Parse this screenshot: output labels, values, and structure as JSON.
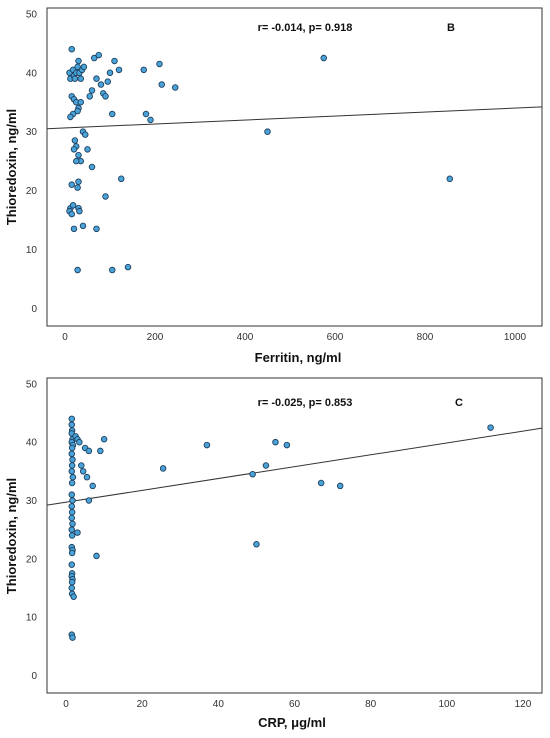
{
  "colors": {
    "point_fill": "#4aa3d8",
    "point_stroke": "#1d3f5e",
    "fit_line": "#333333",
    "frame": "#333333"
  },
  "chart_data": [
    {
      "type": "scatter",
      "panel_letter": "B",
      "annotation": "r= -0.014, p= 0.918",
      "xlabel": "Ferritin, ng/ml",
      "ylabel": "Thioredoxin, ng/ml",
      "xlim": [
        -40,
        1060
      ],
      "ylim": [
        -3,
        51
      ],
      "xticks": [
        0,
        200,
        400,
        600,
        800,
        1000
      ],
      "yticks": [
        0,
        10,
        20,
        30,
        40,
        50
      ],
      "grid": false,
      "fit_line": {
        "x": [
          -40,
          1060
        ],
        "y": [
          30.5,
          34.2
        ]
      },
      "points": [
        {
          "x": 15,
          "y": 44
        },
        {
          "x": 10,
          "y": 40
        },
        {
          "x": 12,
          "y": 39
        },
        {
          "x": 18,
          "y": 40.5
        },
        {
          "x": 20,
          "y": 39.5
        },
        {
          "x": 25,
          "y": 40
        },
        {
          "x": 28,
          "y": 41
        },
        {
          "x": 30,
          "y": 42
        },
        {
          "x": 32,
          "y": 40
        },
        {
          "x": 35,
          "y": 39
        },
        {
          "x": 38,
          "y": 40.5
        },
        {
          "x": 42,
          "y": 41
        },
        {
          "x": 22,
          "y": 39
        },
        {
          "x": 15,
          "y": 36
        },
        {
          "x": 20,
          "y": 35.5
        },
        {
          "x": 25,
          "y": 35
        },
        {
          "x": 30,
          "y": 34
        },
        {
          "x": 35,
          "y": 35
        },
        {
          "x": 28,
          "y": 33.5
        },
        {
          "x": 18,
          "y": 33
        },
        {
          "x": 12,
          "y": 32.5
        },
        {
          "x": 40,
          "y": 30
        },
        {
          "x": 45,
          "y": 29.5
        },
        {
          "x": 22,
          "y": 28.5
        },
        {
          "x": 25,
          "y": 27.5
        },
        {
          "x": 20,
          "y": 27
        },
        {
          "x": 30,
          "y": 26
        },
        {
          "x": 35,
          "y": 25
        },
        {
          "x": 25,
          "y": 25
        },
        {
          "x": 50,
          "y": 27
        },
        {
          "x": 60,
          "y": 24
        },
        {
          "x": 15,
          "y": 21
        },
        {
          "x": 30,
          "y": 21.5
        },
        {
          "x": 28,
          "y": 20.5
        },
        {
          "x": 12,
          "y": 17
        },
        {
          "x": 10,
          "y": 16.5
        },
        {
          "x": 15,
          "y": 16
        },
        {
          "x": 18,
          "y": 17.5
        },
        {
          "x": 30,
          "y": 17
        },
        {
          "x": 32,
          "y": 16.5
        },
        {
          "x": 40,
          "y": 14
        },
        {
          "x": 20,
          "y": 13.5
        },
        {
          "x": 70,
          "y": 13.5
        },
        {
          "x": 28,
          "y": 6.5
        },
        {
          "x": 55,
          "y": 36
        },
        {
          "x": 60,
          "y": 37
        },
        {
          "x": 65,
          "y": 42.5
        },
        {
          "x": 70,
          "y": 39
        },
        {
          "x": 75,
          "y": 43
        },
        {
          "x": 80,
          "y": 38
        },
        {
          "x": 85,
          "y": 36.5
        },
        {
          "x": 90,
          "y": 36
        },
        {
          "x": 95,
          "y": 38.5
        },
        {
          "x": 100,
          "y": 40
        },
        {
          "x": 105,
          "y": 33
        },
        {
          "x": 110,
          "y": 42
        },
        {
          "x": 120,
          "y": 40.5
        },
        {
          "x": 125,
          "y": 22
        },
        {
          "x": 90,
          "y": 19
        },
        {
          "x": 105,
          "y": 6.5
        },
        {
          "x": 140,
          "y": 7
        },
        {
          "x": 175,
          "y": 40.5
        },
        {
          "x": 180,
          "y": 33
        },
        {
          "x": 190,
          "y": 32
        },
        {
          "x": 210,
          "y": 41.5
        },
        {
          "x": 215,
          "y": 38
        },
        {
          "x": 245,
          "y": 37.5
        },
        {
          "x": 450,
          "y": 30
        },
        {
          "x": 575,
          "y": 42.5
        },
        {
          "x": 855,
          "y": 22
        }
      ]
    },
    {
      "type": "scatter",
      "panel_letter": "C",
      "annotation": "r= -0.025, p= 0.853",
      "xlabel": "CRP, μg/ml",
      "ylabel": "Thioredoxin, ng/ml",
      "xlim": [
        -5,
        125
      ],
      "ylim": [
        -3,
        51
      ],
      "xticks": [
        0,
        20,
        40,
        60,
        80,
        100,
        120
      ],
      "yticks": [
        0,
        10,
        20,
        30,
        40,
        50
      ],
      "grid": false,
      "fit_line": {
        "x": [
          -5,
          125
        ],
        "y": [
          29.2,
          42.4
        ]
      },
      "points": [
        {
          "x": 1.5,
          "y": 44
        },
        {
          "x": 1.5,
          "y": 43
        },
        {
          "x": 1.6,
          "y": 42
        },
        {
          "x": 1.5,
          "y": 41.5
        },
        {
          "x": 1.7,
          "y": 40.5
        },
        {
          "x": 1.5,
          "y": 40
        },
        {
          "x": 1.8,
          "y": 39.5
        },
        {
          "x": 1.6,
          "y": 39
        },
        {
          "x": 1.5,
          "y": 38
        },
        {
          "x": 1.7,
          "y": 37
        },
        {
          "x": 1.6,
          "y": 36
        },
        {
          "x": 1.5,
          "y": 35
        },
        {
          "x": 1.8,
          "y": 34
        },
        {
          "x": 1.6,
          "y": 33
        },
        {
          "x": 1.5,
          "y": 31
        },
        {
          "x": 1.7,
          "y": 30
        },
        {
          "x": 1.5,
          "y": 29
        },
        {
          "x": 1.6,
          "y": 28
        },
        {
          "x": 1.5,
          "y": 27
        },
        {
          "x": 1.7,
          "y": 26
        },
        {
          "x": 1.5,
          "y": 25
        },
        {
          "x": 1.6,
          "y": 24
        },
        {
          "x": 1.5,
          "y": 22
        },
        {
          "x": 1.7,
          "y": 21.5
        },
        {
          "x": 1.6,
          "y": 21
        },
        {
          "x": 1.5,
          "y": 19
        },
        {
          "x": 1.6,
          "y": 17.5
        },
        {
          "x": 1.5,
          "y": 17
        },
        {
          "x": 1.7,
          "y": 16.5
        },
        {
          "x": 1.6,
          "y": 16
        },
        {
          "x": 1.5,
          "y": 15
        },
        {
          "x": 1.6,
          "y": 14
        },
        {
          "x": 2,
          "y": 13.5
        },
        {
          "x": 1.5,
          "y": 7
        },
        {
          "x": 1.7,
          "y": 6.5
        },
        {
          "x": 2.5,
          "y": 41
        },
        {
          "x": 3,
          "y": 40.5
        },
        {
          "x": 3.5,
          "y": 40
        },
        {
          "x": 4,
          "y": 36
        },
        {
          "x": 4.5,
          "y": 35
        },
        {
          "x": 5,
          "y": 39
        },
        {
          "x": 5.5,
          "y": 34
        },
        {
          "x": 6,
          "y": 38.5
        },
        {
          "x": 6,
          "y": 30
        },
        {
          "x": 7,
          "y": 32.5
        },
        {
          "x": 8,
          "y": 20.5
        },
        {
          "x": 9,
          "y": 38.5
        },
        {
          "x": 10,
          "y": 40.5
        },
        {
          "x": 3,
          "y": 24.5
        },
        {
          "x": 25.5,
          "y": 35.5
        },
        {
          "x": 37,
          "y": 39.5
        },
        {
          "x": 49,
          "y": 34.5
        },
        {
          "x": 50,
          "y": 22.5
        },
        {
          "x": 52.5,
          "y": 36
        },
        {
          "x": 55,
          "y": 40
        },
        {
          "x": 58,
          "y": 39.5
        },
        {
          "x": 67,
          "y": 33
        },
        {
          "x": 72,
          "y": 32.5
        },
        {
          "x": 111.5,
          "y": 42.5
        }
      ]
    }
  ]
}
